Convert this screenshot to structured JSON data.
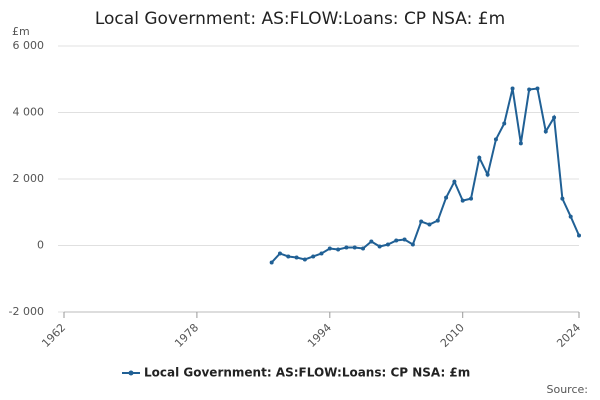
{
  "chart_data": {
    "type": "line",
    "title": "Local Government: AS:FLOW:Loans: CP NSA: £m",
    "y_unit": "£m",
    "source": "Source:",
    "x": [
      1987,
      1988,
      1989,
      1990,
      1991,
      1992,
      1993,
      1994,
      1995,
      1996,
      1997,
      1998,
      1999,
      2000,
      2001,
      2002,
      2003,
      2004,
      2005,
      2006,
      2007,
      2008,
      2009,
      2010,
      2011,
      2012,
      2013,
      2014,
      2015,
      2016,
      2017,
      2018,
      2019,
      2020,
      2021,
      2022,
      2023,
      2024
    ],
    "series": [
      {
        "name": "Local Government: AS:FLOW:Loans: CP NSA: £m",
        "color": "#206095",
        "values": [
          -510,
          -240,
          -330,
          -360,
          -420,
          -330,
          -240,
          -90,
          -120,
          -60,
          -60,
          -90,
          120,
          -30,
          30,
          150,
          180,
          30,
          720,
          630,
          750,
          1440,
          1920,
          1350,
          1410,
          2640,
          2130,
          3190,
          3670,
          4720,
          3070,
          4690,
          4720,
          3430,
          3850,
          1410,
          870,
          300
        ]
      }
    ],
    "xlim": [
      1962,
      2024
    ],
    "xticks": [
      1962,
      1978,
      1994,
      2010,
      2024
    ],
    "ylim": [
      -2000,
      6000
    ],
    "yticks": [
      {
        "value": -2000,
        "label": "-2 000"
      },
      0,
      {
        "value": 2000,
        "label": "2 000"
      },
      {
        "value": 4000,
        "label": "4 000"
      },
      {
        "value": 6000,
        "label": "6 000"
      }
    ],
    "grid": true
  }
}
